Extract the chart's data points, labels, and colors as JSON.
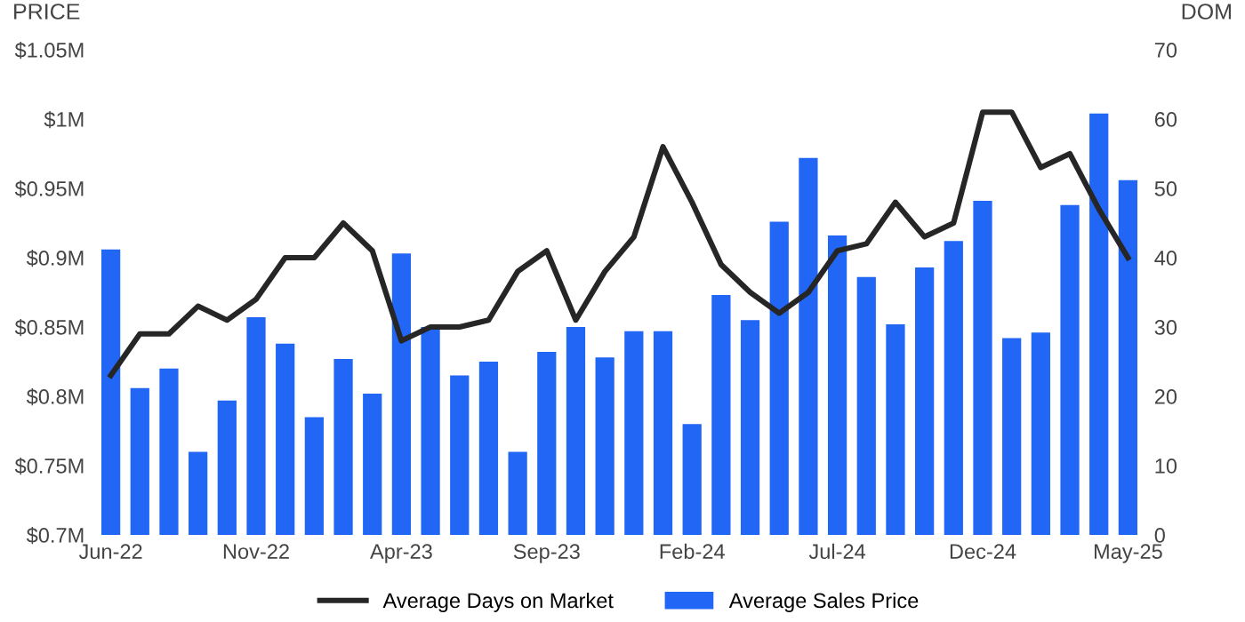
{
  "chart_data": {
    "type": "bar",
    "ylabel": "PRICE",
    "y2label": "DOM",
    "categories": [
      "Jun-22",
      null,
      null,
      null,
      null,
      "Nov-22",
      null,
      null,
      null,
      null,
      "Apr-23",
      null,
      null,
      null,
      null,
      "Sep-23",
      null,
      null,
      null,
      null,
      "Feb-24",
      null,
      null,
      null,
      null,
      "Jul-24",
      null,
      null,
      null,
      null,
      "Dec-24",
      null,
      null,
      null,
      null,
      "May-25"
    ],
    "series": [
      {
        "name": "Average Sales Price",
        "color": "#2166f5",
        "values": [
          0.906,
          0.806,
          0.82,
          0.76,
          0.797,
          0.857,
          0.838,
          0.785,
          0.827,
          0.802,
          0.903,
          0.85,
          0.815,
          0.825,
          0.76,
          0.832,
          0.85,
          0.828,
          0.847,
          0.847,
          0.78,
          0.873,
          0.855,
          0.926,
          0.972,
          0.916,
          0.886,
          0.852,
          0.893,
          0.912,
          0.941,
          0.842,
          0.846,
          0.938,
          1.004,
          0.956
        ]
      },
      {
        "name": "Average Days on Market",
        "type": "line",
        "axis": "y2",
        "color": "#262626",
        "values": [
          23,
          29,
          29,
          33,
          31,
          34,
          40,
          40,
          45,
          41,
          28,
          30,
          30,
          31,
          38,
          41,
          31,
          38,
          43,
          56,
          48,
          39,
          35,
          32,
          35,
          41,
          42,
          48,
          43,
          45,
          61,
          61,
          53,
          55,
          47,
          40
        ]
      }
    ],
    "ylim": [
      0.7,
      1.05
    ],
    "yticks": [
      {
        "value": 0.7,
        "label": "$0.7M"
      },
      {
        "value": 0.75,
        "label": "$0.75M"
      },
      {
        "value": 0.8,
        "label": "$0.8M"
      },
      {
        "value": 0.85,
        "label": "$0.85M"
      },
      {
        "value": 0.9,
        "label": "$0.9M"
      },
      {
        "value": 0.95,
        "label": "$0.95M"
      },
      {
        "value": 1.0,
        "label": "$1M"
      },
      {
        "value": 1.05,
        "label": "$1.05M"
      }
    ],
    "y2lim": [
      0,
      70
    ],
    "y2ticks": [
      0,
      10,
      20,
      30,
      40,
      50,
      60,
      70
    ],
    "grid": false,
    "legend": "bottom",
    "marker": "none",
    "line_style": "solid"
  }
}
